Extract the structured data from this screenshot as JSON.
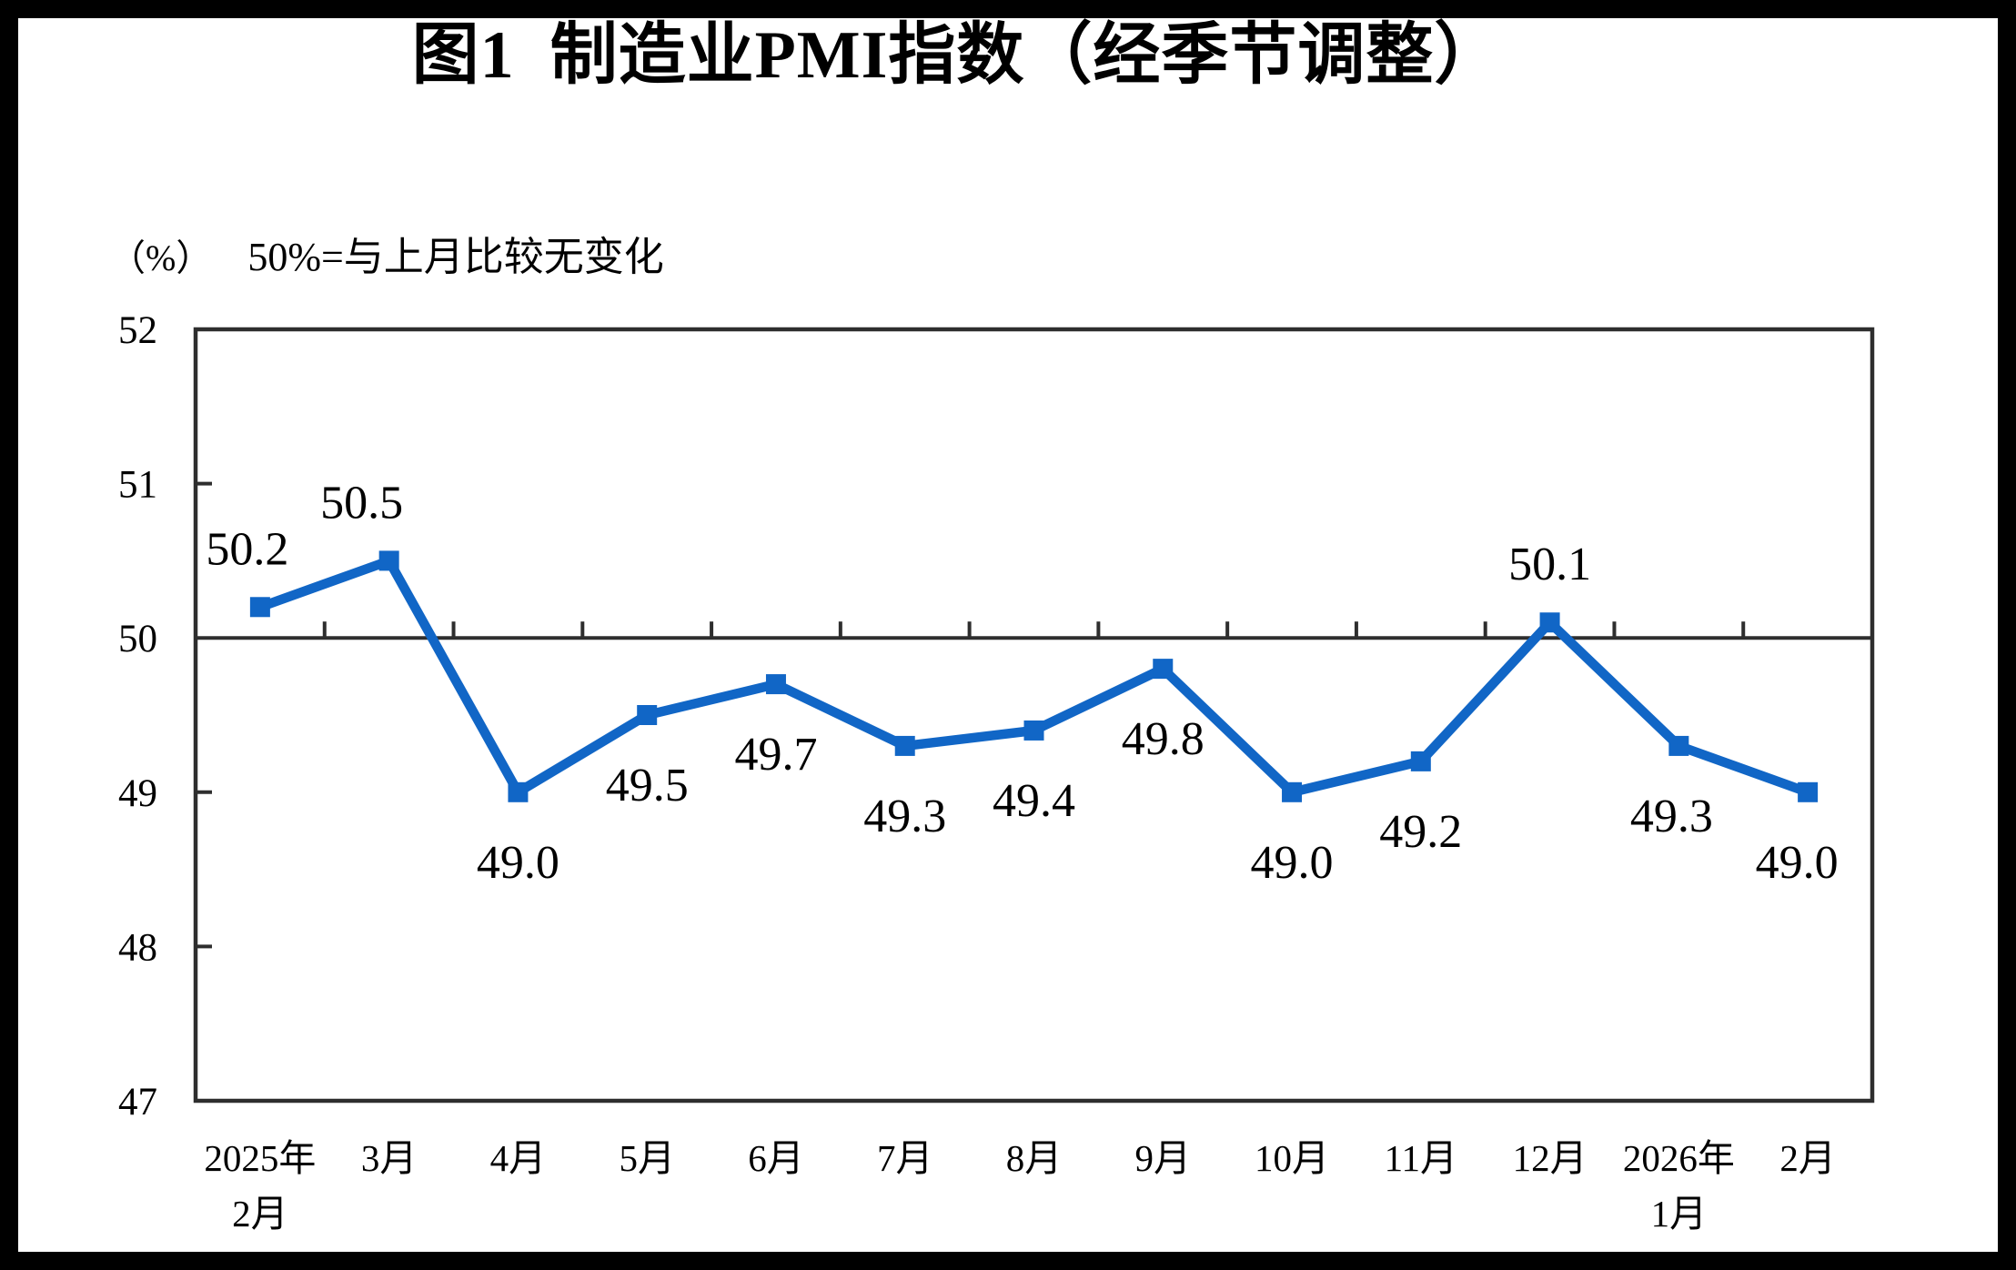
{
  "chart_data": {
    "type": "line",
    "title": "图1  制造业PMI指数（经季节调整）",
    "unit_label": "（%）",
    "note": "50%=与上月比较无变化",
    "categories": [
      "2025年\n2月",
      "3月",
      "4月",
      "5月",
      "6月",
      "7月",
      "8月",
      "9月",
      "10月",
      "11月",
      "12月",
      "2026年\n1月",
      "2月"
    ],
    "values": [
      50.2,
      50.5,
      49.0,
      49.5,
      49.7,
      49.3,
      49.4,
      49.8,
      49.0,
      49.2,
      50.1,
      49.3,
      49.0
    ],
    "data_labels": [
      "50.2",
      "50.5",
      "49.0",
      "49.5",
      "49.7",
      "49.3",
      "49.4",
      "49.8",
      "49.0",
      "49.2",
      "50.1",
      "49.3",
      "49.0"
    ],
    "label_position": [
      "above",
      "above",
      "below",
      "below",
      "below",
      "below",
      "below",
      "below",
      "below",
      "below",
      "above",
      "below",
      "below"
    ],
    "ylim": [
      47,
      52
    ],
    "yticks": [
      52,
      51,
      50,
      49,
      48,
      47
    ],
    "reference_line": 50,
    "grid": false,
    "legend": "none",
    "marker": "square",
    "xlabel": "",
    "ylabel": ""
  },
  "colors": {
    "line": "#1166C6",
    "marker": "#1166C6",
    "axis": "#2E2E2E",
    "text": "#000000",
    "frame": "#000000",
    "background": "#FFFFFF"
  }
}
